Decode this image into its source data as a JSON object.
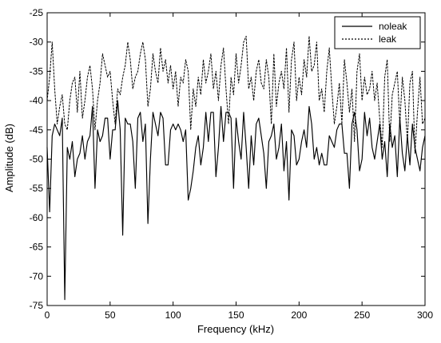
{
  "chart_data": {
    "type": "line",
    "title": "",
    "xlabel": "Frequency (kHz)",
    "ylabel": "Amplitude (dB)",
    "xlim": [
      0,
      300
    ],
    "ylim": [
      -75,
      -25
    ],
    "xticks": [
      0,
      50,
      100,
      150,
      200,
      250,
      300
    ],
    "yticks": [
      -75,
      -70,
      -65,
      -60,
      -55,
      -50,
      -45,
      -40,
      -35,
      -30,
      -25
    ],
    "xtick_labels": [
      "0",
      "50",
      "100",
      "150",
      "200",
      "250",
      "300"
    ],
    "ytick_labels": [
      "-75",
      "-70",
      "-65",
      "-60",
      "-55",
      "-50",
      "-45",
      "-40",
      "-35",
      "-30",
      "-25"
    ],
    "grid": false,
    "legend_position": "top-right",
    "series": [
      {
        "name": "noleak",
        "color": "#000000",
        "line_style": "solid",
        "x": [
          0,
          2,
          4,
          6,
          8,
          10,
          12,
          14,
          16,
          18,
          20,
          22,
          24,
          26,
          28,
          30,
          32,
          34,
          36,
          38,
          40,
          42,
          44,
          46,
          48,
          50,
          52,
          54,
          56,
          58,
          60,
          62,
          64,
          66,
          68,
          70,
          72,
          74,
          76,
          78,
          80,
          82,
          84,
          86,
          88,
          90,
          92,
          94,
          96,
          98,
          100,
          102,
          104,
          106,
          108,
          110,
          112,
          114,
          116,
          118,
          120,
          122,
          124,
          126,
          128,
          130,
          132,
          134,
          136,
          138,
          140,
          142,
          144,
          146,
          148,
          150,
          152,
          154,
          156,
          158,
          160,
          162,
          164,
          166,
          168,
          170,
          172,
          174,
          176,
          178,
          180,
          182,
          184,
          186,
          188,
          190,
          192,
          194,
          196,
          198,
          200,
          202,
          204,
          206,
          208,
          210,
          212,
          214,
          216,
          218,
          220,
          222,
          224,
          226,
          228,
          230,
          232,
          234,
          236,
          238,
          240,
          242,
          244,
          246,
          248,
          250,
          252,
          254,
          256,
          258,
          260,
          262,
          264,
          266,
          268,
          270,
          272,
          274,
          276,
          278,
          280,
          282,
          284,
          286,
          288,
          290,
          292,
          294,
          296,
          298,
          300
        ],
        "y": [
          -48,
          -59,
          -46,
          -44,
          -45,
          -46,
          -43,
          -74,
          -48,
          -50,
          -47,
          -53,
          -50,
          -49,
          -46,
          -50,
          -47,
          -46,
          -41,
          -55,
          -45,
          -47,
          -46,
          -43,
          -43,
          -50,
          -45,
          -45,
          -40,
          -45,
          -63,
          -43,
          -44,
          -44,
          -47,
          -55,
          -43,
          -42,
          -47,
          -44,
          -61,
          -50,
          -42,
          -44,
          -46,
          -42,
          -43,
          -51,
          -51,
          -45,
          -44,
          -45,
          -44,
          -45,
          -47,
          -45,
          -57,
          -55,
          -52,
          -48,
          -46,
          -51,
          -48,
          -42,
          -47,
          -42,
          -42,
          -53,
          -48,
          -41,
          -47,
          -42,
          -42,
          -43,
          -55,
          -43,
          -47,
          -50,
          -42,
          -48,
          -55,
          -46,
          -51,
          -44,
          -43,
          -46,
          -49,
          -55,
          -47,
          -46,
          -44,
          -50,
          -48,
          -44,
          -52,
          -47,
          -57,
          -45,
          -46,
          -51,
          -50,
          -47,
          -45,
          -48,
          -41,
          -44,
          -50,
          -48,
          -51,
          -49,
          -51,
          -51,
          -46,
          -47,
          -48,
          -45,
          -44,
          -44,
          -49,
          -49,
          -55,
          -44,
          -42,
          -45,
          -52,
          -50,
          -42,
          -46,
          -43,
          -48,
          -50,
          -47,
          -44,
          -50,
          -47,
          -53,
          -44,
          -48,
          -46,
          -53,
          -43,
          -49,
          -52,
          -46,
          -51,
          -44,
          -48,
          -50,
          -52,
          -48,
          -46
        ]
      },
      {
        "name": "leak",
        "color": "#000000",
        "line_style": "dotted",
        "x": [
          0,
          2,
          4,
          6,
          8,
          10,
          12,
          14,
          16,
          18,
          20,
          22,
          24,
          26,
          28,
          30,
          32,
          34,
          36,
          38,
          40,
          42,
          44,
          46,
          48,
          50,
          52,
          54,
          56,
          58,
          60,
          62,
          64,
          66,
          68,
          70,
          72,
          74,
          76,
          78,
          80,
          82,
          84,
          86,
          88,
          90,
          92,
          94,
          96,
          98,
          100,
          102,
          104,
          106,
          108,
          110,
          112,
          114,
          116,
          118,
          120,
          122,
          124,
          126,
          128,
          130,
          132,
          134,
          136,
          138,
          140,
          142,
          144,
          146,
          148,
          150,
          152,
          154,
          156,
          158,
          160,
          162,
          164,
          166,
          168,
          170,
          172,
          174,
          176,
          178,
          180,
          182,
          184,
          186,
          188,
          190,
          192,
          194,
          196,
          198,
          200,
          202,
          204,
          206,
          208,
          210,
          212,
          214,
          216,
          218,
          220,
          222,
          224,
          226,
          228,
          230,
          232,
          234,
          236,
          238,
          240,
          242,
          244,
          246,
          248,
          250,
          252,
          254,
          256,
          258,
          260,
          262,
          264,
          266,
          268,
          270,
          272,
          274,
          276,
          278,
          280,
          282,
          284,
          286,
          288,
          290,
          292,
          294,
          296,
          298,
          300
        ],
        "y": [
          -40,
          -36,
          -30,
          -38,
          -44,
          -41,
          -39,
          -44,
          -45,
          -40,
          -37,
          -36,
          -42,
          -35,
          -43,
          -40,
          -36,
          -34,
          -38,
          -45,
          -40,
          -37,
          -32,
          -34,
          -36,
          -35,
          -40,
          -44,
          -38,
          -39,
          -36,
          -34,
          -30,
          -33,
          -38,
          -36,
          -35,
          -32,
          -30,
          -33,
          -41,
          -38,
          -32,
          -35,
          -37,
          -31,
          -35,
          -33,
          -37,
          -34,
          -38,
          -35,
          -41,
          -36,
          -37,
          -33,
          -35,
          -45,
          -38,
          -41,
          -36,
          -39,
          -33,
          -37,
          -35,
          -32,
          -38,
          -35,
          -40,
          -34,
          -31,
          -38,
          -44,
          -36,
          -39,
          -32,
          -37,
          -34,
          -30,
          -29,
          -38,
          -36,
          -40,
          -35,
          -33,
          -37,
          -38,
          -33,
          -36,
          -44,
          -32,
          -41,
          -37,
          -35,
          -38,
          -31,
          -42,
          -33,
          -30,
          -40,
          -36,
          -39,
          -33,
          -36,
          -29,
          -35,
          -34,
          -30,
          -40,
          -38,
          -42,
          -35,
          -31,
          -38,
          -44,
          -41,
          -37,
          -44,
          -33,
          -37,
          -42,
          -38,
          -47,
          -35,
          -32,
          -40,
          -36,
          -39,
          -38,
          -35,
          -40,
          -37,
          -43,
          -48,
          -36,
          -33,
          -47,
          -39,
          -37,
          -35,
          -44,
          -36,
          -40,
          -47,
          -37,
          -35,
          -49,
          -42,
          -36,
          -44,
          -43
        ]
      }
    ]
  }
}
